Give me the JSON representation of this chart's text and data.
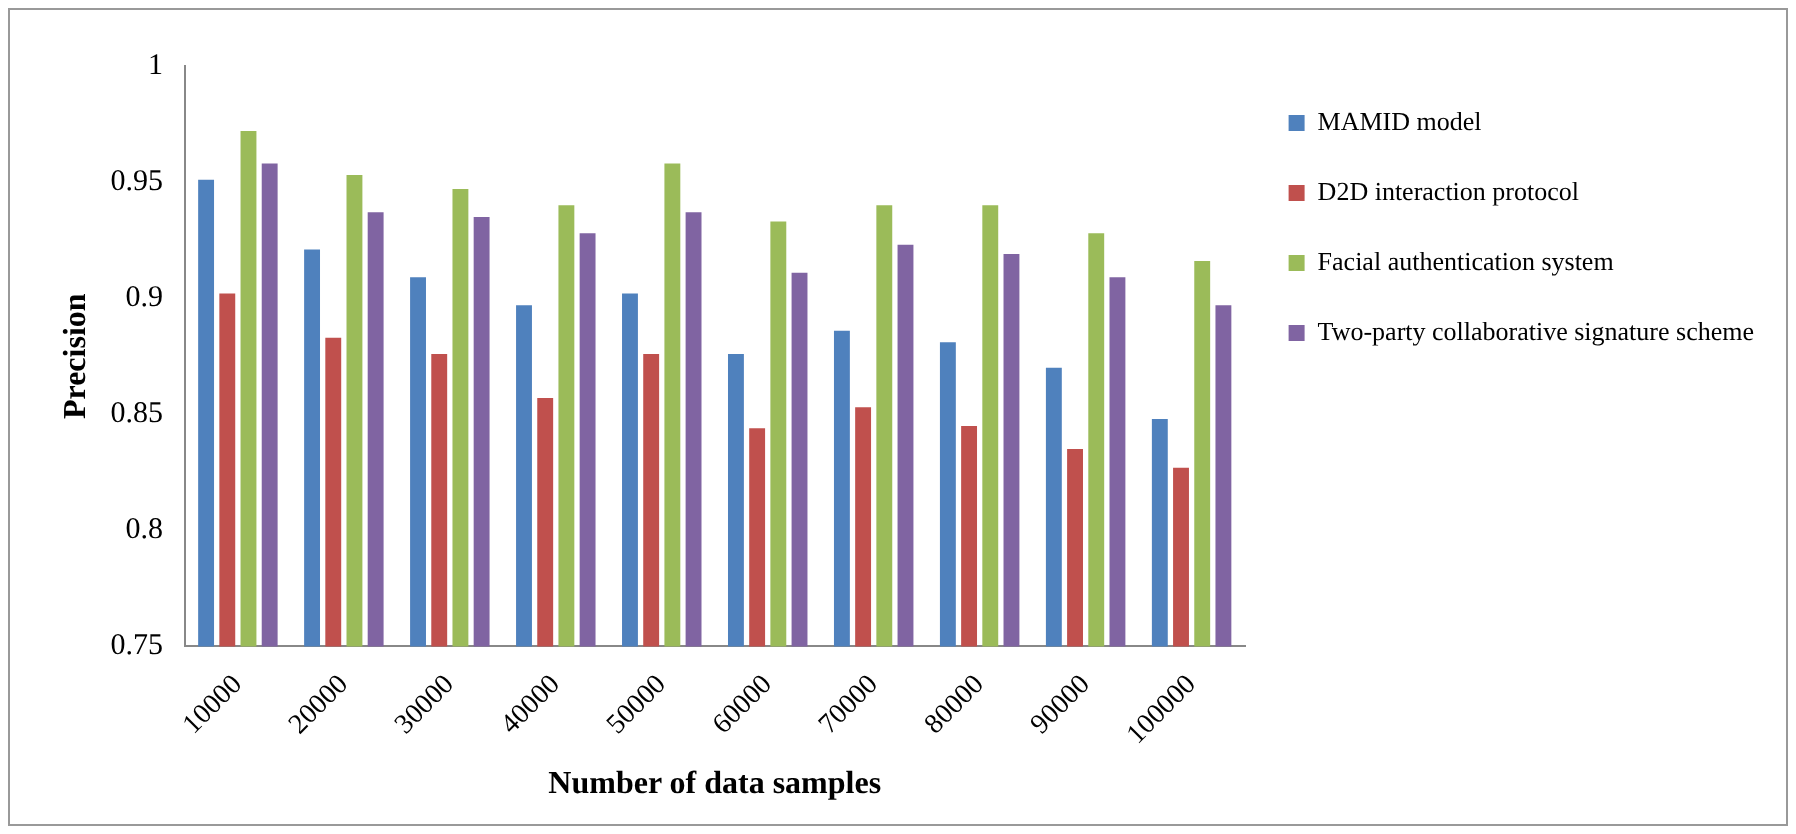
{
  "chart_data": {
    "type": "bar",
    "xlabel": "Number of data samples",
    "ylabel": "Precision",
    "categories": [
      "10000",
      "20000",
      "30000",
      "40000",
      "50000",
      "60000",
      "70000",
      "80000",
      "90000",
      "100000"
    ],
    "series": [
      {
        "name": "MAMID model",
        "color": "#4f81bd",
        "values": [
          0.951,
          0.921,
          0.909,
          0.897,
          0.902,
          0.876,
          0.886,
          0.881,
          0.87,
          0.848
        ]
      },
      {
        "name": "D2D interaction protocol",
        "color": "#c0504d",
        "values": [
          0.902,
          0.883,
          0.876,
          0.857,
          0.876,
          0.844,
          0.853,
          0.845,
          0.835,
          0.827
        ]
      },
      {
        "name": "Facial authentication system",
        "color": "#9bbb59",
        "values": [
          0.972,
          0.953,
          0.947,
          0.94,
          0.958,
          0.933,
          0.94,
          0.94,
          0.928,
          0.916
        ]
      },
      {
        "name": "Two-party collaborative signature scheme",
        "color": "#8064a2",
        "values": [
          0.958,
          0.937,
          0.935,
          0.928,
          0.937,
          0.911,
          0.923,
          0.919,
          0.909,
          0.897
        ]
      }
    ],
    "ylim": [
      0.75,
      1
    ],
    "yticks": [
      0.75,
      0.8,
      0.85,
      0.9,
      0.95,
      1
    ],
    "grid": false,
    "legend": "right"
  }
}
